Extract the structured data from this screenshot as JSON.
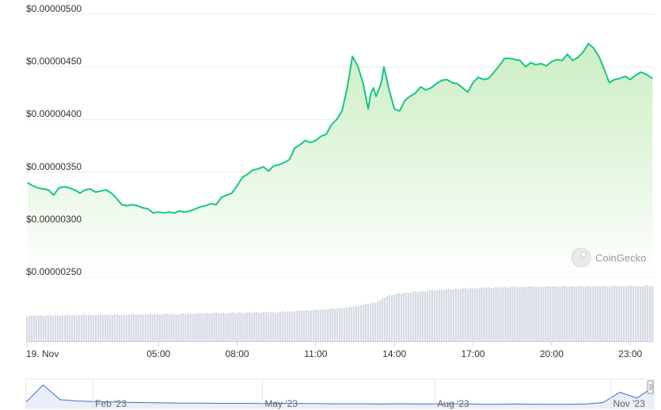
{
  "chart_data": {
    "type": "area",
    "title": "",
    "ylabel": "",
    "xlabel": "",
    "y_tick_labels": [
      "$0.00000500",
      "$0.00000450",
      "$0.00000400",
      "$0.00000350",
      "$0.00000300",
      "$0.00000250"
    ],
    "y_tick_values": [
      5e-06,
      4.5e-06,
      4e-06,
      3.5e-06,
      3e-06,
      2.5e-06
    ],
    "ylim": [
      2.5e-06,
      5e-06
    ],
    "x_tick_labels": [
      "19. Nov",
      "05:00",
      "08:00",
      "11:00",
      "14:00",
      "17:00",
      "20:00",
      "23:00"
    ],
    "x_tick_hours": [
      0,
      5,
      8,
      11,
      14,
      17,
      20,
      23
    ],
    "xlim_hours": [
      -0.05,
      23.9
    ],
    "grid": "horizontal",
    "colors": {
      "line": "#16c784",
      "area_top": "#d6f2cf",
      "volume": "#d5d9e2",
      "navigator_line": "#3d6fc7"
    },
    "price": {
      "hours": [
        0.0,
        0.2,
        0.4,
        0.6,
        0.8,
        1.0,
        1.2,
        1.4,
        1.6,
        1.8,
        2.0,
        2.2,
        2.4,
        2.6,
        2.8,
        3.0,
        3.2,
        3.4,
        3.6,
        3.8,
        4.0,
        4.2,
        4.4,
        4.6,
        4.8,
        5.0,
        5.2,
        5.4,
        5.6,
        5.8,
        6.0,
        6.2,
        6.4,
        6.6,
        6.8,
        7.0,
        7.2,
        7.4,
        7.6,
        7.8,
        8.0,
        8.2,
        8.4,
        8.6,
        8.8,
        9.0,
        9.2,
        9.4,
        9.6,
        9.8,
        10.0,
        10.2,
        10.4,
        10.6,
        10.8,
        11.0,
        11.2,
        11.4,
        11.6,
        11.8,
        12.0,
        12.2,
        12.4,
        12.6,
        12.8,
        13.0,
        13.1,
        13.2,
        13.3,
        13.4,
        13.5,
        13.6,
        13.8,
        14.0,
        14.2,
        14.4,
        14.6,
        14.8,
        15.0,
        15.2,
        15.4,
        15.6,
        15.8,
        16.0,
        16.2,
        16.4,
        16.6,
        16.8,
        17.0,
        17.2,
        17.4,
        17.6,
        17.8,
        18.0,
        18.2,
        18.4,
        18.6,
        18.8,
        19.0,
        19.2,
        19.4,
        19.6,
        19.8,
        20.0,
        20.2,
        20.4,
        20.6,
        20.8,
        21.0,
        21.2,
        21.4,
        21.6,
        21.8,
        22.0,
        22.2,
        22.4,
        22.6,
        22.8,
        23.0,
        23.2,
        23.4,
        23.6,
        23.85
      ],
      "values": [
        3.4e-06,
        3.37e-06,
        3.35e-06,
        3.34e-06,
        3.33e-06,
        3.28e-06,
        3.35e-06,
        3.36e-06,
        3.35e-06,
        3.33e-06,
        3.3e-06,
        3.33e-06,
        3.34e-06,
        3.31e-06,
        3.32e-06,
        3.33e-06,
        3.3e-06,
        3.25e-06,
        3.19e-06,
        3.18e-06,
        3.19e-06,
        3.18e-06,
        3.16e-06,
        3.15e-06,
        3.11e-06,
        3.12e-06,
        3.11e-06,
        3.12e-06,
        3.11e-06,
        3.13e-06,
        3.12e-06,
        3.13e-06,
        3.15e-06,
        3.17e-06,
        3.18e-06,
        3.2e-06,
        3.19e-06,
        3.26e-06,
        3.28e-06,
        3.3e-06,
        3.37e-06,
        3.45e-06,
        3.48e-06,
        3.52e-06,
        3.53e-06,
        3.55e-06,
        3.51e-06,
        3.56e-06,
        3.57e-06,
        3.59e-06,
        3.62e-06,
        3.73e-06,
        3.76e-06,
        3.8e-06,
        3.78e-06,
        3.8e-06,
        3.84e-06,
        3.86e-06,
        3.95e-06,
        4e-06,
        4.08e-06,
        4.3e-06,
        4.6e-06,
        4.51e-06,
        4.35e-06,
        4.1e-06,
        4.25e-06,
        4.3e-06,
        4.22e-06,
        4.28e-06,
        4.35e-06,
        4.5e-06,
        4.28e-06,
        4.1e-06,
        4.08e-06,
        4.18e-06,
        4.22e-06,
        4.25e-06,
        4.31e-06,
        4.28e-06,
        4.3e-06,
        4.34e-06,
        4.37e-06,
        4.38e-06,
        4.35e-06,
        4.34e-06,
        4.3e-06,
        4.26e-06,
        4.35e-06,
        4.4e-06,
        4.38e-06,
        4.39e-06,
        4.45e-06,
        4.51e-06,
        4.58e-06,
        4.58e-06,
        4.57e-06,
        4.56e-06,
        4.5e-06,
        4.54e-06,
        4.52e-06,
        4.53e-06,
        4.51e-06,
        4.55e-06,
        4.57e-06,
        4.56e-06,
        4.62e-06,
        4.56e-06,
        4.59e-06,
        4.64e-06,
        4.72e-06,
        4.68e-06,
        4.6e-06,
        4.48e-06,
        4.35e-06,
        4.38e-06,
        4.39e-06,
        4.41e-06,
        4.38e-06,
        4.42e-06,
        4.45e-06,
        4.43e-06,
        4.39e-06
      ]
    },
    "volume": {
      "description_unit": "relative",
      "hours_start": 0,
      "hours_end": 23.85,
      "profile": [
        [
          0,
          0.3
        ],
        [
          2.5,
          0.31
        ],
        [
          5.5,
          0.32
        ],
        [
          7.5,
          0.335
        ],
        [
          9.5,
          0.345
        ],
        [
          11.0,
          0.37
        ],
        [
          12.2,
          0.4
        ],
        [
          13.3,
          0.46
        ],
        [
          13.8,
          0.55
        ],
        [
          14.5,
          0.58
        ],
        [
          16.0,
          0.62
        ],
        [
          17.5,
          0.64
        ],
        [
          19.0,
          0.65
        ],
        [
          20.5,
          0.655
        ],
        [
          23.85,
          0.66
        ]
      ]
    },
    "navigator": {
      "tick_labels": [
        "Feb '23",
        "May '23",
        "Aug '23",
        "Nov '23"
      ],
      "tick_positions": [
        0.11,
        0.38,
        0.655,
        0.935
      ],
      "series": [
        0.18,
        0.92,
        0.28,
        0.22,
        0.2,
        0.18,
        0.16,
        0.15,
        0.14,
        0.13,
        0.13,
        0.12,
        0.12,
        0.12,
        0.11,
        0.12,
        0.11,
        0.11,
        0.1,
        0.1,
        0.1,
        0.09,
        0.1,
        0.09,
        0.09,
        0.1,
        0.09,
        0.08,
        0.08,
        0.09,
        0.08,
        0.08,
        0.08,
        0.09,
        0.15,
        0.6,
        0.35,
        0.85
      ]
    }
  },
  "watermark": {
    "text": "CoinGecko"
  }
}
